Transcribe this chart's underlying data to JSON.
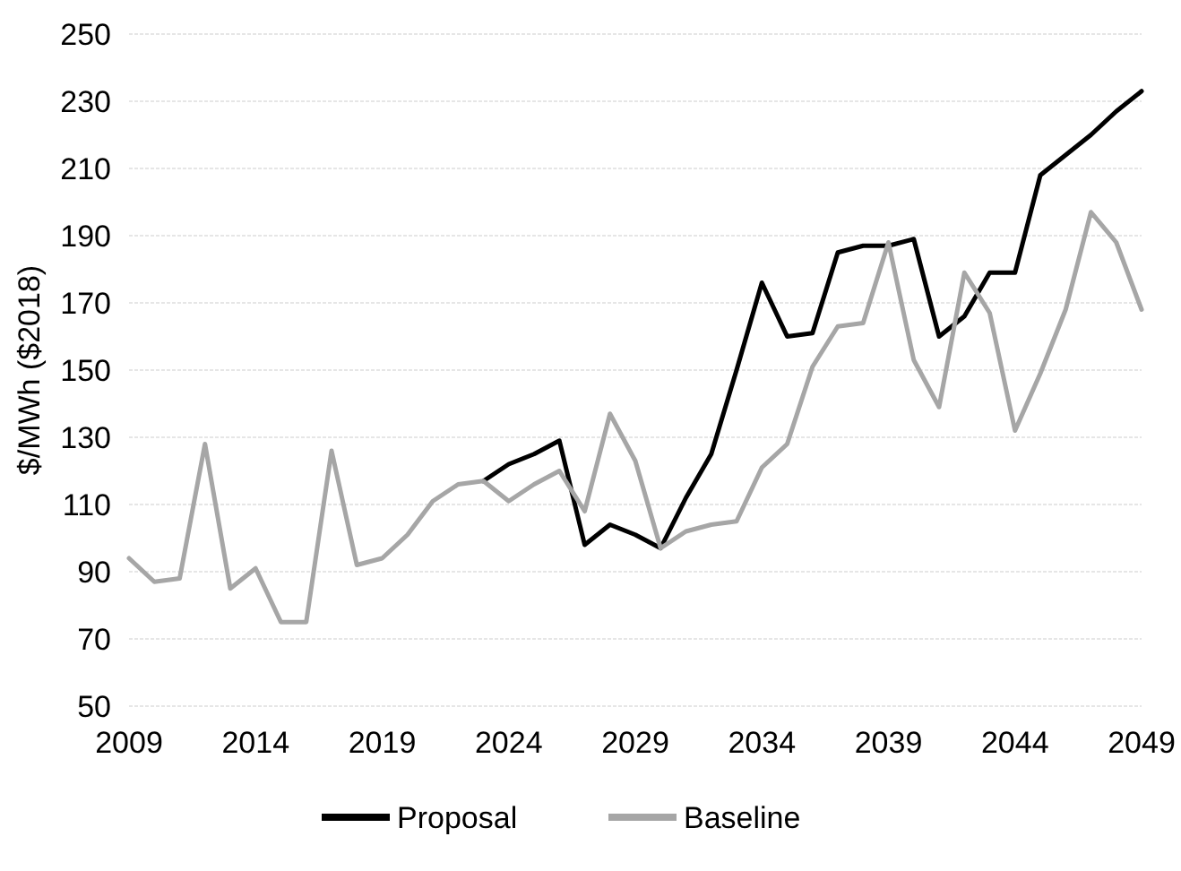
{
  "chart_data": {
    "type": "line",
    "ylabel": "$/MWh ($2018)",
    "x": [
      2009,
      2010,
      2011,
      2012,
      2013,
      2014,
      2015,
      2016,
      2017,
      2018,
      2019,
      2020,
      2021,
      2022,
      2023,
      2024,
      2025,
      2026,
      2027,
      2028,
      2029,
      2030,
      2031,
      2032,
      2033,
      2034,
      2035,
      2036,
      2037,
      2038,
      2039,
      2040,
      2041,
      2042,
      2043,
      2044,
      2045,
      2046,
      2047,
      2048,
      2049
    ],
    "series": [
      {
        "name": "Proposal",
        "color": "#000000",
        "values": [
          null,
          null,
          null,
          null,
          null,
          null,
          null,
          null,
          null,
          null,
          null,
          null,
          null,
          null,
          117,
          122,
          125,
          129,
          98,
          104,
          101,
          97,
          112,
          125,
          150,
          176,
          160,
          161,
          185,
          187,
          187,
          189,
          160,
          166,
          179,
          179,
          208,
          214,
          220,
          227,
          233
        ]
      },
      {
        "name": "Baseline",
        "color": "#a6a6a6",
        "values": [
          94,
          87,
          88,
          128,
          85,
          91,
          75,
          75,
          126,
          92,
          94,
          101,
          111,
          116,
          117,
          111,
          116,
          120,
          108,
          137,
          123,
          97,
          102,
          104,
          105,
          121,
          128,
          151,
          163,
          164,
          188,
          153,
          139,
          179,
          167,
          132,
          149,
          168,
          197,
          188,
          168
        ]
      }
    ],
    "xlim": [
      2009,
      2049
    ],
    "xticks": [
      2009,
      2014,
      2019,
      2024,
      2029,
      2034,
      2039,
      2044,
      2049
    ],
    "ylim": [
      50,
      250
    ],
    "yticks": [
      50,
      70,
      90,
      110,
      130,
      150,
      170,
      190,
      210,
      230,
      250
    ],
    "grid": "y",
    "legend": "bottom"
  }
}
